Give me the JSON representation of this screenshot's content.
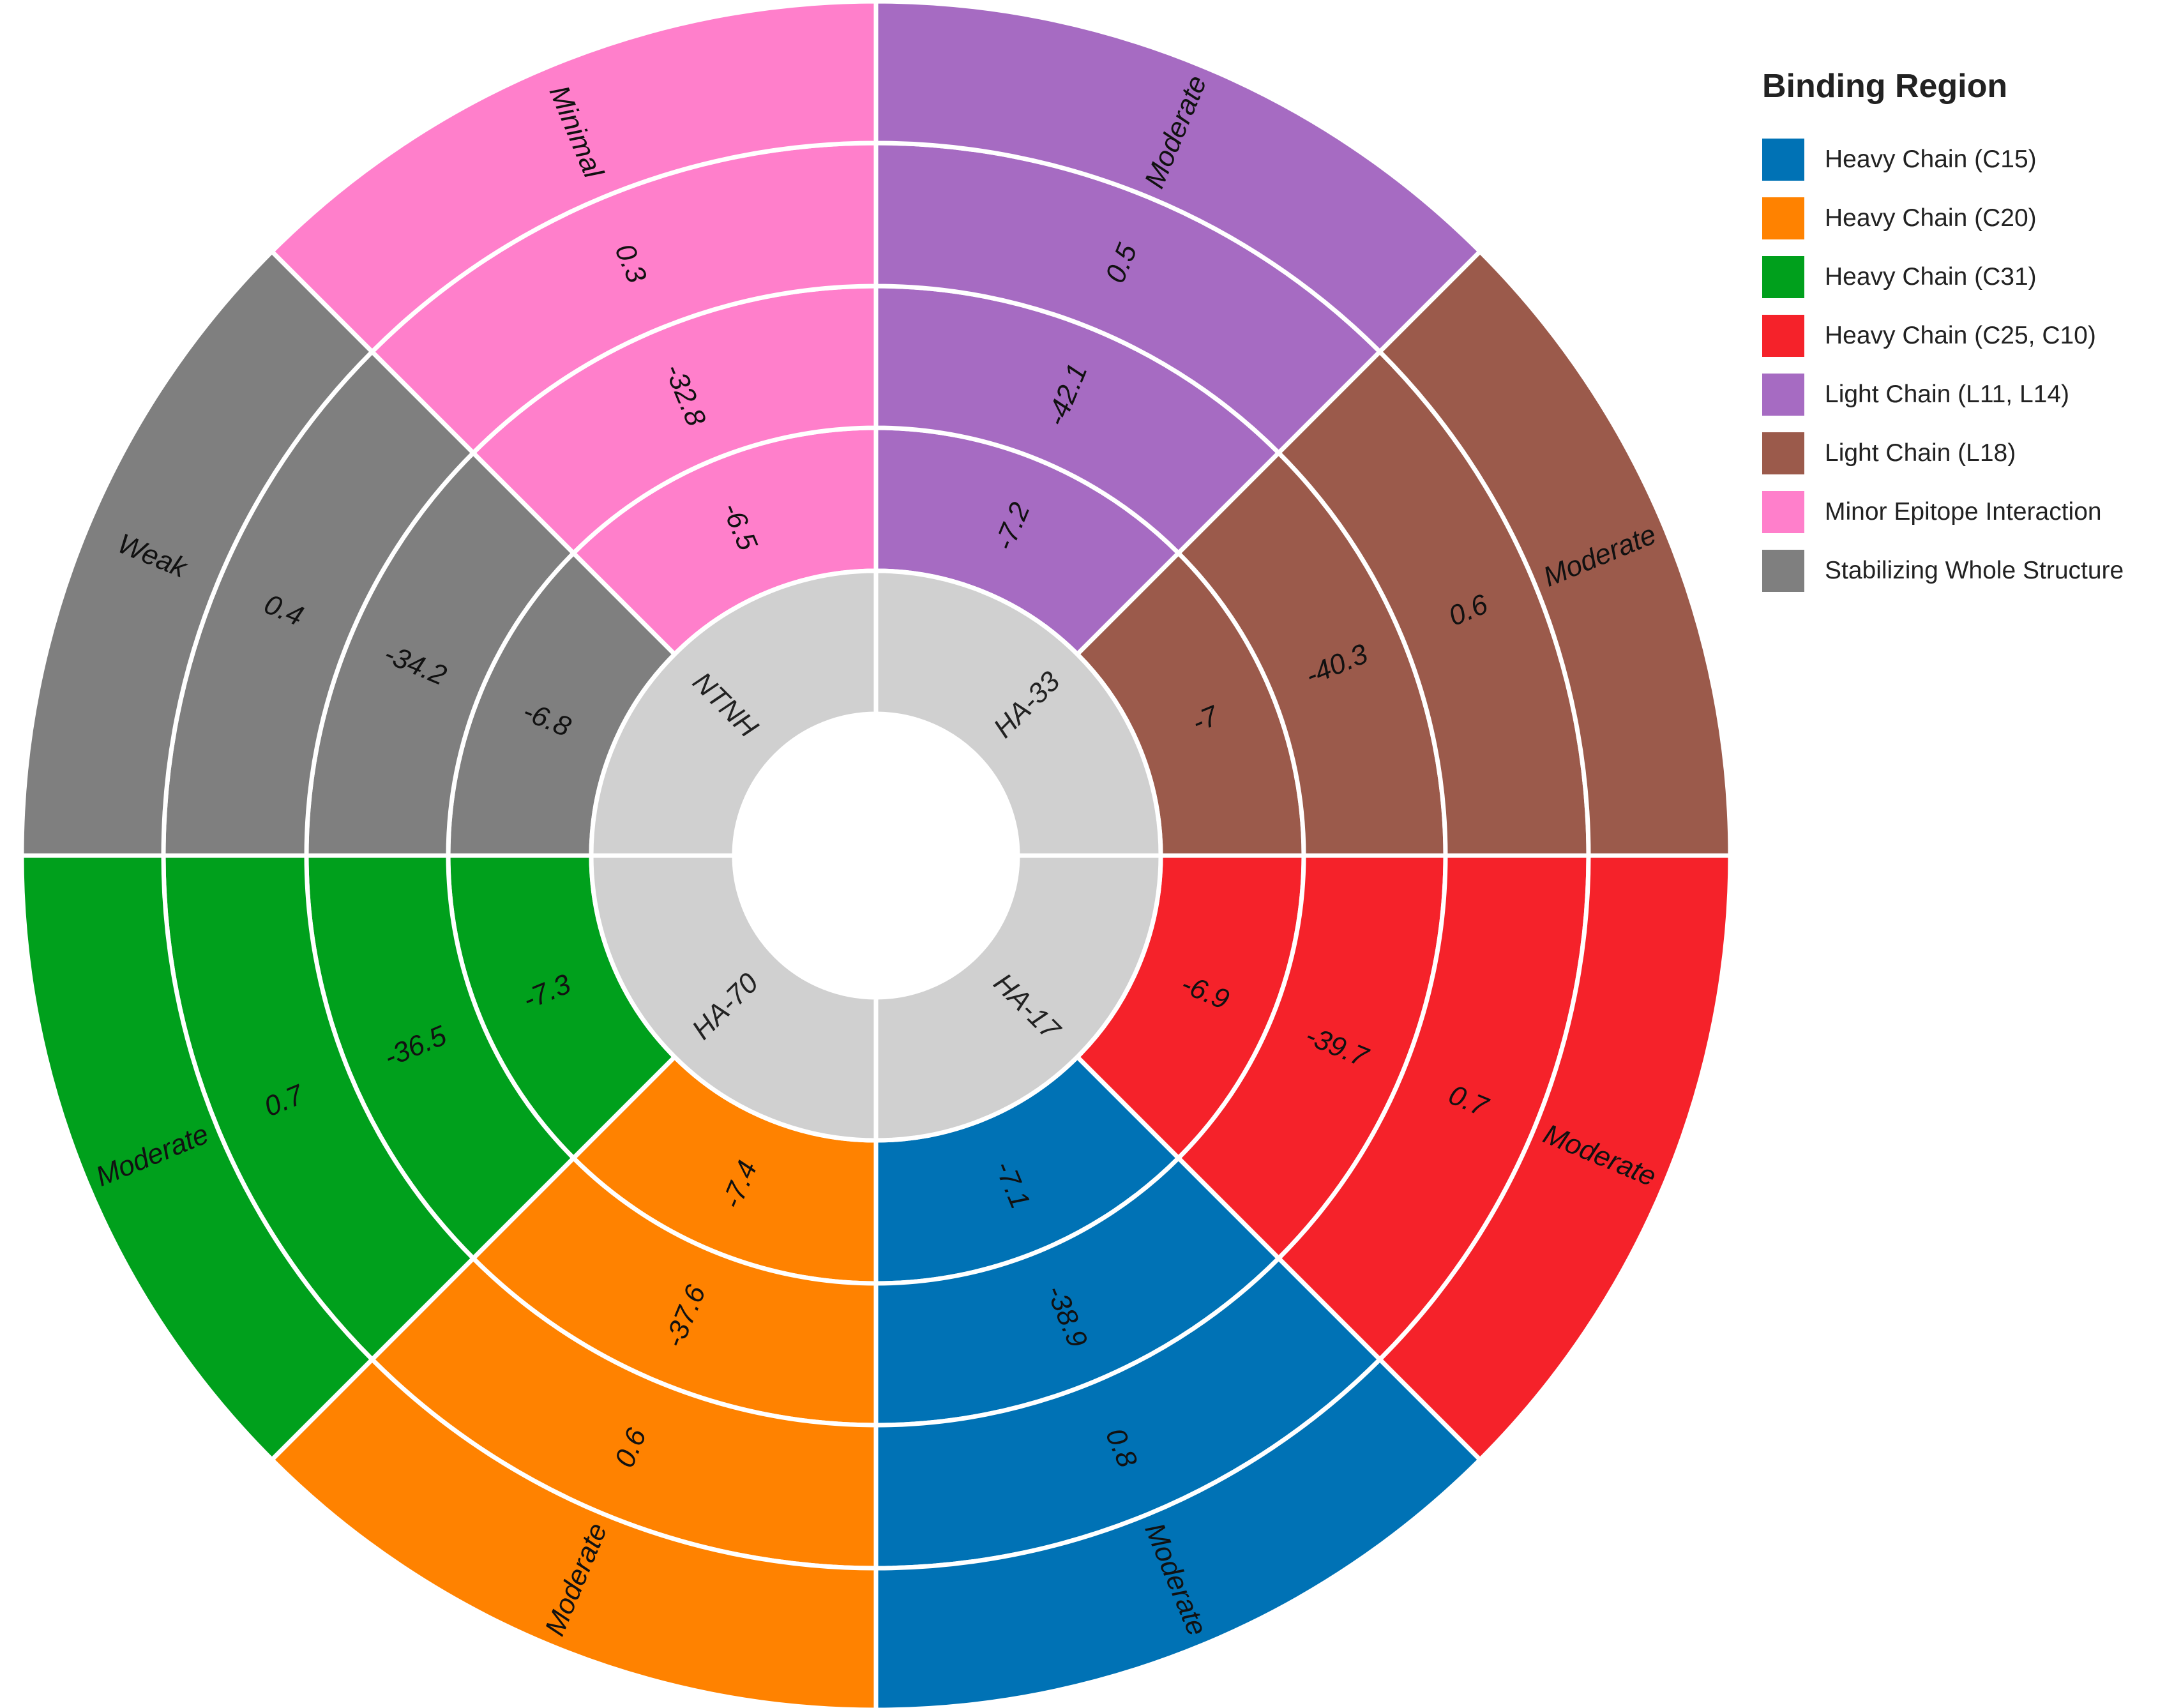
{
  "chart_data": {
    "type": "sunburst",
    "legend": {
      "title": "Binding Region",
      "placement": "top-right",
      "entries": [
        {
          "label": "Heavy Chain (C15)",
          "color": "#0072B5"
        },
        {
          "label": "Heavy Chain (C20)",
          "color": "#FF8200"
        },
        {
          "label": "Heavy Chain (C31)",
          "color": "#00A01C"
        },
        {
          "label": "Heavy Chain (C25, C10)",
          "color": "#F5222A"
        },
        {
          "label": "Light Chain (L11, L14)",
          "color": "#A66BC2"
        },
        {
          "label": "Light Chain (L18)",
          "color": "#9B5A4B"
        },
        {
          "label": "Minor Epitope Interaction",
          "color": "#FF7FCB"
        },
        {
          "label": "Stabilizing Whole Structure",
          "color": "#7F7F7F"
        }
      ]
    },
    "center_ring_color": "#D0D0D0",
    "sectors": [
      {
        "center_label": "HA-33",
        "color": "#A66BC2",
        "values": [
          "-7.2",
          "-42.1",
          "0.5",
          "Moderate"
        ]
      },
      {
        "center_label": "HA-33",
        "color": "#9B5A4B",
        "values": [
          "-7",
          "-40.3",
          "0.6",
          "Moderate"
        ]
      },
      {
        "center_label": "HA-17",
        "color": "#F5222A",
        "values": [
          "-6.9",
          "-39.7",
          "0.7",
          "Moderate"
        ]
      },
      {
        "center_label": "HA-17",
        "color": "#0072B5",
        "values": [
          "-7.1",
          "-38.9",
          "0.8",
          "Moderate"
        ]
      },
      {
        "center_label": "HA-70",
        "color": "#FF8200",
        "values": [
          "-7.4",
          "-37.6",
          "0.6",
          "Moderate"
        ]
      },
      {
        "center_label": "HA-70",
        "color": "#00A01C",
        "values": [
          "-7.3",
          "-36.5",
          "0.7",
          "Moderate"
        ]
      },
      {
        "center_label": "NTNH",
        "color": "#7F7F7F",
        "values": [
          "-6.8",
          "-34.2",
          "0.4",
          "Weak"
        ]
      },
      {
        "center_label": "NTNH",
        "color": "#FF7FCB",
        "values": [
          "-6.5",
          "-32.8",
          "0.3",
          "Minimal"
        ]
      }
    ]
  }
}
